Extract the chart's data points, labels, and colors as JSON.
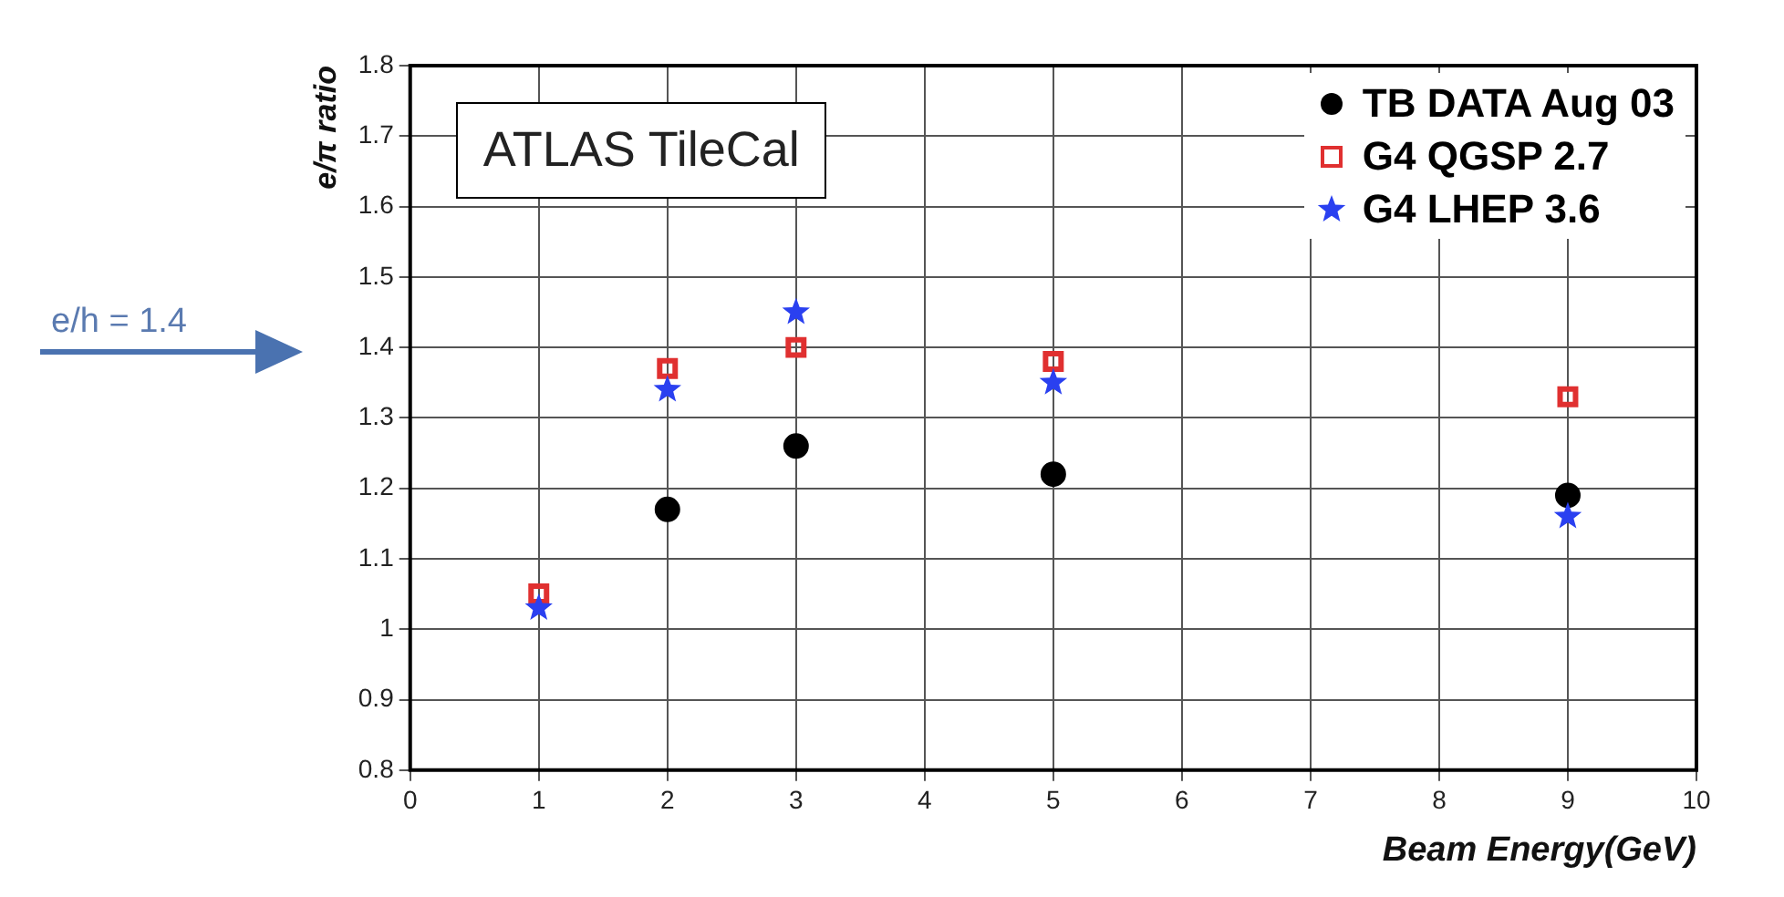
{
  "chart_data": {
    "type": "scatter",
    "xlabel": "Beam Energy(GeV)",
    "ylabel": "e/π ratio",
    "x": [
      1,
      2,
      3,
      5,
      9
    ],
    "series": [
      {
        "name": "TB DATA Aug 03",
        "color": "#000000",
        "marker": "circle",
        "values": [
          null,
          1.17,
          1.26,
          1.22,
          1.19
        ]
      },
      {
        "name": "G4 QGSP 2.7",
        "color": "#e03030",
        "marker": "square",
        "values": [
          1.05,
          1.37,
          1.4,
          1.38,
          1.33
        ]
      },
      {
        "name": "G4 LHEP 3.6",
        "color": "#2a40f0",
        "marker": "star",
        "values": [
          1.03,
          1.34,
          1.45,
          1.35,
          1.16
        ]
      }
    ],
    "xlim": [
      0,
      10
    ],
    "xticks": [
      0,
      1,
      2,
      3,
      4,
      5,
      6,
      7,
      8,
      9,
      10
    ],
    "ylim": [
      0.8,
      1.8
    ],
    "yticks": [
      0.8,
      0.9,
      1,
      1.1,
      1.2,
      1.3,
      1.4,
      1.5,
      1.6,
      1.7,
      1.8
    ],
    "grid": true,
    "legend": "top right",
    "annotations": [
      "ATLAS TileCal",
      "e/h = 1.4"
    ]
  }
}
